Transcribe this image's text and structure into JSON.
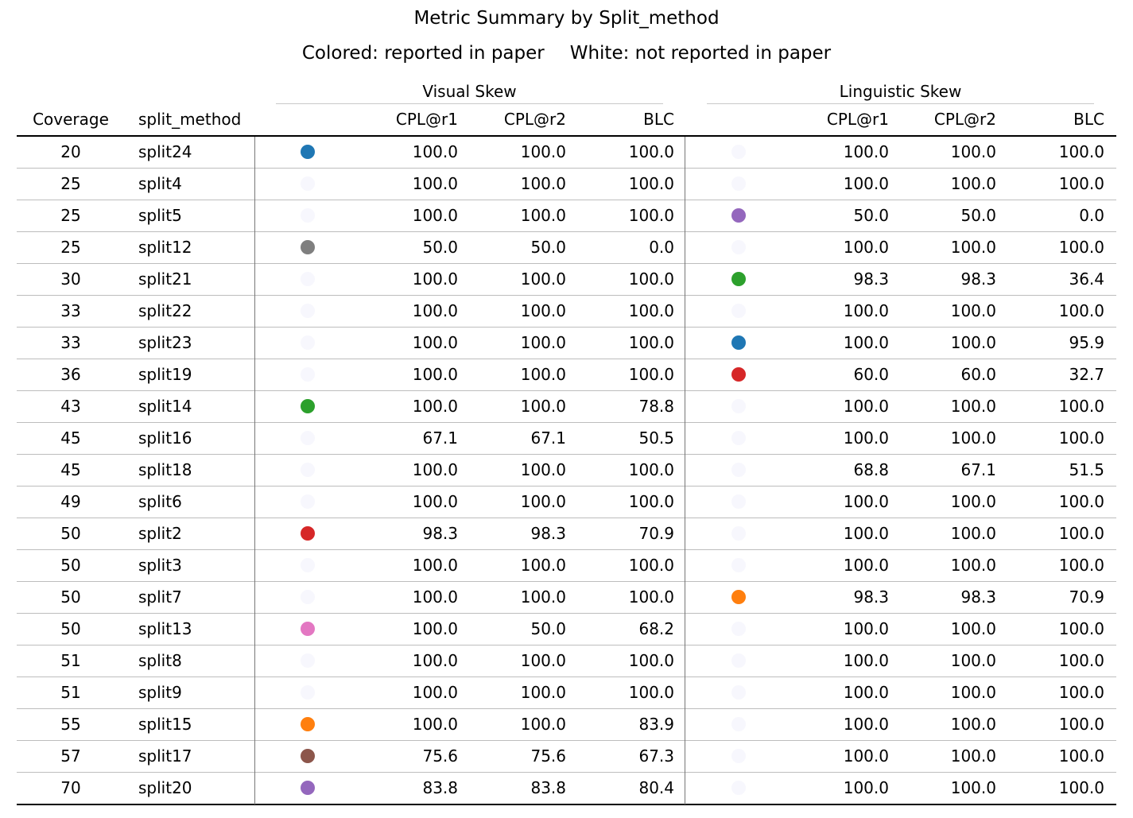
{
  "chart_data": {
    "type": "table",
    "title": "Metric Summary by Split_method",
    "subtitle_left": "Colored: reported in paper",
    "subtitle_right": "White: not reported in paper",
    "groups": [
      "Visual Skew",
      "Linguistic Skew"
    ],
    "columns": {
      "coverage": "Coverage",
      "split_method": "split_method",
      "metrics": [
        "CPL@r1",
        "CPL@r2",
        "BLC"
      ]
    },
    "not_reported_color": "#f7f7fd",
    "rows": [
      {
        "coverage": "20",
        "split": "split24",
        "visual": {
          "color": "#1f77b4",
          "values": [
            "100.0",
            "100.0",
            "100.0"
          ]
        },
        "linguistic": {
          "color": null,
          "values": [
            "100.0",
            "100.0",
            "100.0"
          ]
        }
      },
      {
        "coverage": "25",
        "split": "split4",
        "visual": {
          "color": null,
          "values": [
            "100.0",
            "100.0",
            "100.0"
          ]
        },
        "linguistic": {
          "color": null,
          "values": [
            "100.0",
            "100.0",
            "100.0"
          ]
        }
      },
      {
        "coverage": "25",
        "split": "split5",
        "visual": {
          "color": null,
          "values": [
            "100.0",
            "100.0",
            "100.0"
          ]
        },
        "linguistic": {
          "color": "#9467bd",
          "values": [
            "50.0",
            "50.0",
            "0.0"
          ]
        }
      },
      {
        "coverage": "25",
        "split": "split12",
        "visual": {
          "color": "#7f7f7f",
          "values": [
            "50.0",
            "50.0",
            "0.0"
          ]
        },
        "linguistic": {
          "color": null,
          "values": [
            "100.0",
            "100.0",
            "100.0"
          ]
        }
      },
      {
        "coverage": "30",
        "split": "split21",
        "visual": {
          "color": null,
          "values": [
            "100.0",
            "100.0",
            "100.0"
          ]
        },
        "linguistic": {
          "color": "#2ca02c",
          "values": [
            "98.3",
            "98.3",
            "36.4"
          ]
        }
      },
      {
        "coverage": "33",
        "split": "split22",
        "visual": {
          "color": null,
          "values": [
            "100.0",
            "100.0",
            "100.0"
          ]
        },
        "linguistic": {
          "color": null,
          "values": [
            "100.0",
            "100.0",
            "100.0"
          ]
        }
      },
      {
        "coverage": "33",
        "split": "split23",
        "visual": {
          "color": null,
          "values": [
            "100.0",
            "100.0",
            "100.0"
          ]
        },
        "linguistic": {
          "color": "#1f77b4",
          "values": [
            "100.0",
            "100.0",
            "95.9"
          ]
        }
      },
      {
        "coverage": "36",
        "split": "split19",
        "visual": {
          "color": null,
          "values": [
            "100.0",
            "100.0",
            "100.0"
          ]
        },
        "linguistic": {
          "color": "#d62728",
          "values": [
            "60.0",
            "60.0",
            "32.7"
          ]
        }
      },
      {
        "coverage": "43",
        "split": "split14",
        "visual": {
          "color": "#2ca02c",
          "values": [
            "100.0",
            "100.0",
            "78.8"
          ]
        },
        "linguistic": {
          "color": null,
          "values": [
            "100.0",
            "100.0",
            "100.0"
          ]
        }
      },
      {
        "coverage": "45",
        "split": "split16",
        "visual": {
          "color": null,
          "values": [
            "67.1",
            "67.1",
            "50.5"
          ]
        },
        "linguistic": {
          "color": null,
          "values": [
            "100.0",
            "100.0",
            "100.0"
          ]
        }
      },
      {
        "coverage": "45",
        "split": "split18",
        "visual": {
          "color": null,
          "values": [
            "100.0",
            "100.0",
            "100.0"
          ]
        },
        "linguistic": {
          "color": null,
          "values": [
            "68.8",
            "67.1",
            "51.5"
          ]
        }
      },
      {
        "coverage": "49",
        "split": "split6",
        "visual": {
          "color": null,
          "values": [
            "100.0",
            "100.0",
            "100.0"
          ]
        },
        "linguistic": {
          "color": null,
          "values": [
            "100.0",
            "100.0",
            "100.0"
          ]
        }
      },
      {
        "coverage": "50",
        "split": "split2",
        "visual": {
          "color": "#d62728",
          "values": [
            "98.3",
            "98.3",
            "70.9"
          ]
        },
        "linguistic": {
          "color": null,
          "values": [
            "100.0",
            "100.0",
            "100.0"
          ]
        }
      },
      {
        "coverage": "50",
        "split": "split3",
        "visual": {
          "color": null,
          "values": [
            "100.0",
            "100.0",
            "100.0"
          ]
        },
        "linguistic": {
          "color": null,
          "values": [
            "100.0",
            "100.0",
            "100.0"
          ]
        }
      },
      {
        "coverage": "50",
        "split": "split7",
        "visual": {
          "color": null,
          "values": [
            "100.0",
            "100.0",
            "100.0"
          ]
        },
        "linguistic": {
          "color": "#ff7f0e",
          "values": [
            "98.3",
            "98.3",
            "70.9"
          ]
        }
      },
      {
        "coverage": "50",
        "split": "split13",
        "visual": {
          "color": "#e377c2",
          "values": [
            "100.0",
            "50.0",
            "68.2"
          ]
        },
        "linguistic": {
          "color": null,
          "values": [
            "100.0",
            "100.0",
            "100.0"
          ]
        }
      },
      {
        "coverage": "51",
        "split": "split8",
        "visual": {
          "color": null,
          "values": [
            "100.0",
            "100.0",
            "100.0"
          ]
        },
        "linguistic": {
          "color": null,
          "values": [
            "100.0",
            "100.0",
            "100.0"
          ]
        }
      },
      {
        "coverage": "51",
        "split": "split9",
        "visual": {
          "color": null,
          "values": [
            "100.0",
            "100.0",
            "100.0"
          ]
        },
        "linguistic": {
          "color": null,
          "values": [
            "100.0",
            "100.0",
            "100.0"
          ]
        }
      },
      {
        "coverage": "55",
        "split": "split15",
        "visual": {
          "color": "#ff7f0e",
          "values": [
            "100.0",
            "100.0",
            "83.9"
          ]
        },
        "linguistic": {
          "color": null,
          "values": [
            "100.0",
            "100.0",
            "100.0"
          ]
        }
      },
      {
        "coverage": "57",
        "split": "split17",
        "visual": {
          "color": "#8c564b",
          "values": [
            "75.6",
            "75.6",
            "67.3"
          ]
        },
        "linguistic": {
          "color": null,
          "values": [
            "100.0",
            "100.0",
            "100.0"
          ]
        }
      },
      {
        "coverage": "70",
        "split": "split20",
        "visual": {
          "color": "#9467bd",
          "values": [
            "83.8",
            "83.8",
            "80.4"
          ]
        },
        "linguistic": {
          "color": null,
          "values": [
            "100.0",
            "100.0",
            "100.0"
          ]
        }
      }
    ]
  }
}
